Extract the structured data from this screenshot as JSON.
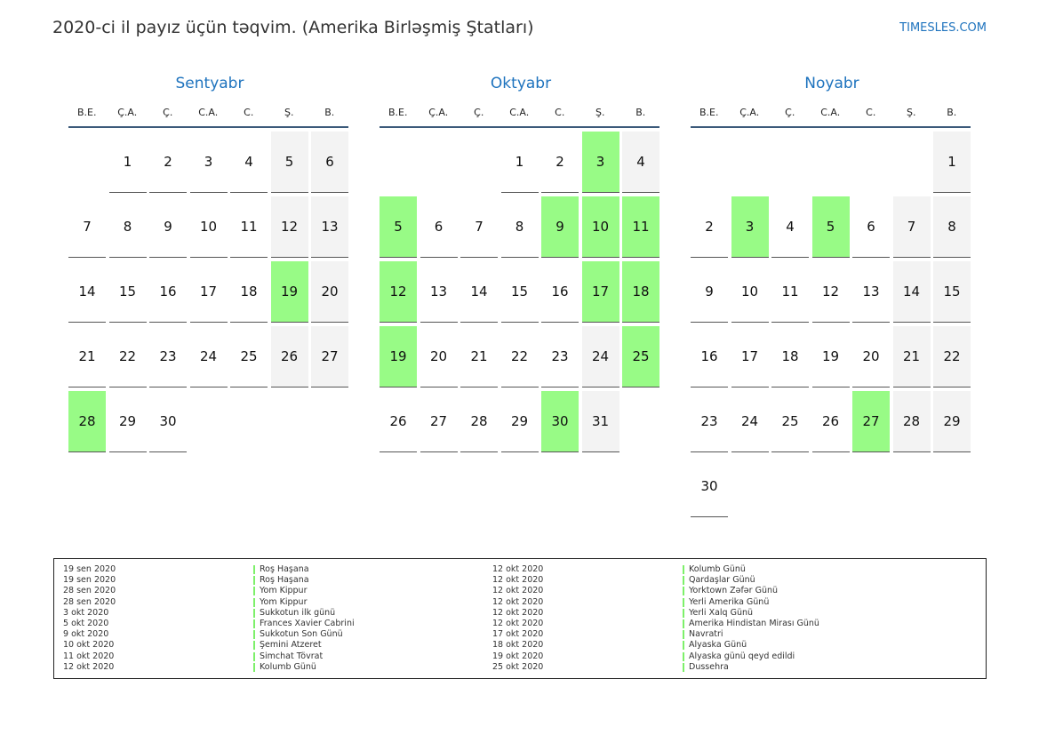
{
  "header": {
    "title": "2020-ci il payız üçün təqvim. (Amerika Birləşmiş Ştatları)",
    "brand": "TIMESLES.COM"
  },
  "colors": {
    "accent": "#1e73be",
    "holiday": "#98fb86",
    "weekend": "#f3f3f3"
  },
  "weekdays": [
    "B.E.",
    "Ç.A.",
    "Ç.",
    "C.A.",
    "C.",
    "Ş.",
    "B."
  ],
  "months": [
    {
      "name": "Sentyabr",
      "first_weekday_index": 1,
      "days": 30,
      "holidays": [
        19,
        28
      ]
    },
    {
      "name": "Oktyabr",
      "first_weekday_index": 3,
      "days": 31,
      "holidays": [
        3,
        5,
        9,
        10,
        11,
        12,
        17,
        18,
        19,
        25,
        30
      ]
    },
    {
      "name": "Noyabr",
      "first_weekday_index": 6,
      "days": 30,
      "holidays": [
        3,
        5,
        27
      ]
    }
  ],
  "holiday_list": [
    {
      "date": "19 sen 2020",
      "name": "Roş Haşana"
    },
    {
      "date": "19 sen 2020",
      "name": "Roş Haşana"
    },
    {
      "date": "28 sen 2020",
      "name": "Yom Kippur"
    },
    {
      "date": "28 sen 2020",
      "name": "Yom Kippur"
    },
    {
      "date": "3 okt 2020",
      "name": "Sukkotun ilk günü"
    },
    {
      "date": "5 okt 2020",
      "name": "Frances Xavier Cabrini"
    },
    {
      "date": "9 okt 2020",
      "name": "Sukkotun Son Günü"
    },
    {
      "date": "10 okt 2020",
      "name": "Şemini Atzeret"
    },
    {
      "date": "11 okt 2020",
      "name": "Simchat Tövrat"
    },
    {
      "date": "12 okt 2020",
      "name": "Kolumb Günü"
    },
    {
      "date": "12 okt 2020",
      "name": "Kolumb Günü"
    },
    {
      "date": "12 okt 2020",
      "name": "Qardaşlar Günü"
    },
    {
      "date": "12 okt 2020",
      "name": "Yorktown Zəfər Günü"
    },
    {
      "date": "12 okt 2020",
      "name": "Yerli Amerika Günü"
    },
    {
      "date": "12 okt 2020",
      "name": "Yerli Xalq Günü"
    },
    {
      "date": "12 okt 2020",
      "name": "Amerika Hindistan Mirası Günü"
    },
    {
      "date": "17 okt 2020",
      "name": "Navratri"
    },
    {
      "date": "18 okt 2020",
      "name": "Alyaska Günü"
    },
    {
      "date": "19 okt 2020",
      "name": "Alyaska günü qeyd edildi"
    },
    {
      "date": "25 okt 2020",
      "name": "Dussehra"
    }
  ]
}
